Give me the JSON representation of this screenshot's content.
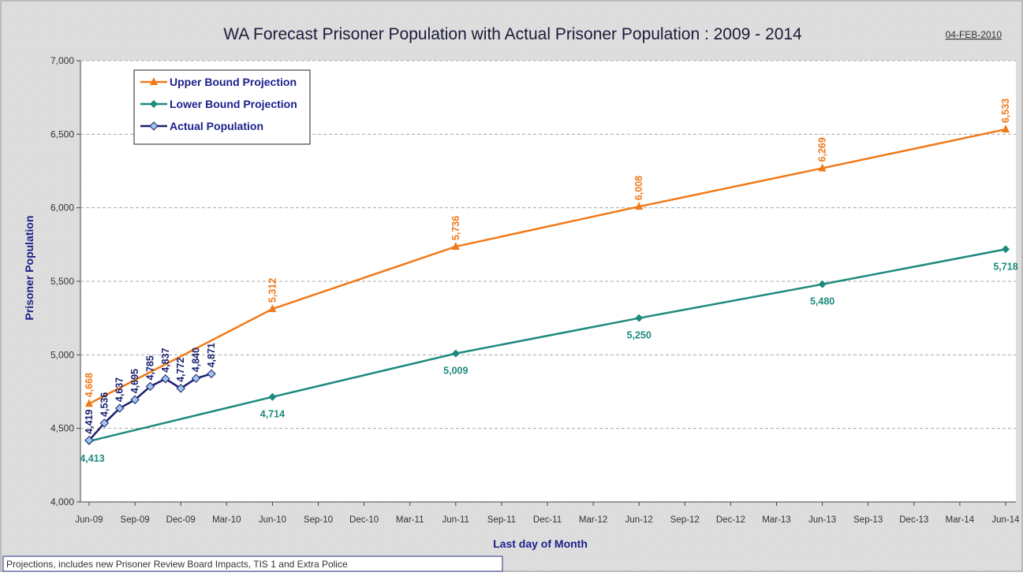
{
  "chart_data": {
    "type": "line",
    "title": "WA Forecast Prisoner Population with Actual Prisoner Population : 2009 - 2014",
    "date_stamp": "04-FEB-2010",
    "xlabel": "Last day of Month",
    "ylabel": "Prisoner Population",
    "ylim": [
      4000,
      7000
    ],
    "y_ticks": [
      "4,000",
      "4,500",
      "5,000",
      "5,500",
      "6,000",
      "6,500",
      "7,000"
    ],
    "x_ticks": [
      "Jun-09",
      "Sep-09",
      "Dec-09",
      "Mar-10",
      "Jun-10",
      "Sep-10",
      "Dec-10",
      "Mar-11",
      "Jun-11",
      "Sep-11",
      "Dec-11",
      "Mar-12",
      "Jun-12",
      "Sep-12",
      "Dec-12",
      "Mar-13",
      "Jun-13",
      "Sep-13",
      "Dec-13",
      "Mar-14",
      "Jun-14"
    ],
    "grid": "horizontal dashed",
    "legend_position": "top-left",
    "series": [
      {
        "name": "Upper Bound Projection",
        "color": "#f07a1a",
        "marker": "triangle",
        "points": [
          {
            "x": "Jun-09",
            "y": 4668,
            "label": "4,668"
          },
          {
            "x": "Jun-10",
            "y": 5312,
            "label": "5,312"
          },
          {
            "x": "Jun-11",
            "y": 5736,
            "label": "5,736"
          },
          {
            "x": "Jun-12",
            "y": 6008,
            "label": "6,008"
          },
          {
            "x": "Jun-13",
            "y": 6269,
            "label": "6,269"
          },
          {
            "x": "Jun-14",
            "y": 6533,
            "label": "6,533"
          }
        ]
      },
      {
        "name": "Lower Bound Projection",
        "color": "#1e8a7e",
        "marker": "diamond",
        "points": [
          {
            "x": "Jun-09",
            "y": 4413,
            "label": "4,413"
          },
          {
            "x": "Jun-10",
            "y": 4714,
            "label": "4,714"
          },
          {
            "x": "Jun-11",
            "y": 5009,
            "label": "5,009"
          },
          {
            "x": "Jun-12",
            "y": 5250,
            "label": "5,250"
          },
          {
            "x": "Jun-13",
            "y": 5480,
            "label": "5,480"
          },
          {
            "x": "Jun-14",
            "y": 5718,
            "label": "5,718"
          }
        ]
      },
      {
        "name": "Actual Population",
        "color": "#1a1f6e",
        "marker": "diamond-open",
        "points": [
          {
            "x": "Jun-09",
            "y": 4419,
            "label": "4,419"
          },
          {
            "x": "Jul-09",
            "y": 4536,
            "label": "4,536"
          },
          {
            "x": "Aug-09",
            "y": 4637,
            "label": "4,637"
          },
          {
            "x": "Sep-09",
            "y": 4695,
            "label": "4,695"
          },
          {
            "x": "Oct-09",
            "y": 4785,
            "label": "4,785"
          },
          {
            "x": "Nov-09",
            "y": 4837,
            "label": "4,837"
          },
          {
            "x": "Dec-09",
            "y": 4772,
            "label": "4,772"
          },
          {
            "x": "Jan-10",
            "y": 4840,
            "label": "4,840"
          },
          {
            "x": "Feb-10",
            "y": 4871,
            "label": "4,871"
          }
        ]
      }
    ]
  },
  "footnote": "Projections, includes new Prisoner Review Board Impacts, TIS 1 and Extra Police"
}
